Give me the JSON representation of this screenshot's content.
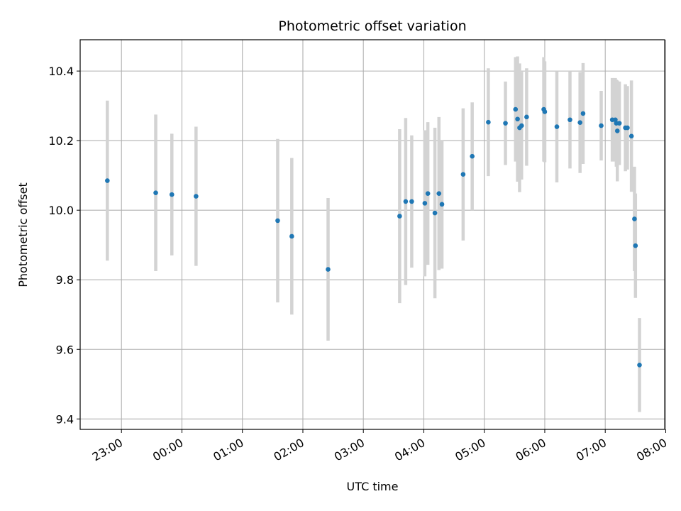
{
  "chart_data": {
    "type": "scatter",
    "title": "Photometric offset variation",
    "xlabel": "UTC time",
    "ylabel": "Photometric offset",
    "x_ticks": [
      "23:00",
      "00:00",
      "01:00",
      "02:00",
      "03:00",
      "04:00",
      "05:00",
      "06:00",
      "07:00",
      "08:00"
    ],
    "y_ticks": [
      "9.4",
      "9.6",
      "9.8",
      "10.0",
      "10.2",
      "10.4"
    ],
    "xlim_hours_from_2300": [
      -0.683,
      8.983
    ],
    "ylim": [
      9.37,
      10.49
    ],
    "grid": true,
    "colors": {
      "point": "#1f77b4",
      "errorbar": "#d3d3d3",
      "grid": "#b0b0b0"
    },
    "points": [
      {
        "time": "22:46",
        "y": 10.085,
        "err": 0.23
      },
      {
        "time": "23:34",
        "y": 10.05,
        "err": 0.225
      },
      {
        "time": "23:50",
        "y": 10.045,
        "err": 0.175
      },
      {
        "time": "00:14",
        "y": 10.04,
        "err": 0.2
      },
      {
        "time": "01:35",
        "y": 9.97,
        "err": 0.235
      },
      {
        "time": "01:49",
        "y": 9.925,
        "err": 0.225
      },
      {
        "time": "02:25",
        "y": 9.83,
        "err": 0.205
      },
      {
        "time": "03:36",
        "y": 9.983,
        "err": 0.25
      },
      {
        "time": "03:42",
        "y": 10.025,
        "err": 0.24
      },
      {
        "time": "03:48",
        "y": 10.025,
        "err": 0.19
      },
      {
        "time": "04:01",
        "y": 10.02,
        "err": 0.21
      },
      {
        "time": "04:04",
        "y": 10.048,
        "err": 0.205
      },
      {
        "time": "04:11",
        "y": 9.992,
        "err": 0.245
      },
      {
        "time": "04:15",
        "y": 10.048,
        "err": 0.22
      },
      {
        "time": "04:18",
        "y": 10.017,
        "err": 0.185
      },
      {
        "time": "04:39",
        "y": 10.103,
        "err": 0.19
      },
      {
        "time": "04:48",
        "y": 10.155,
        "err": 0.155
      },
      {
        "time": "05:04",
        "y": 10.253,
        "err": 0.155
      },
      {
        "time": "05:21",
        "y": 10.25,
        "err": 0.12
      },
      {
        "time": "05:31",
        "y": 10.29,
        "err": 0.15
      },
      {
        "time": "05:33",
        "y": 10.262,
        "err": 0.18
      },
      {
        "time": "05:35",
        "y": 10.237,
        "err": 0.185
      },
      {
        "time": "05:37",
        "y": 10.243,
        "err": 0.155
      },
      {
        "time": "05:42",
        "y": 10.268,
        "err": 0.14
      },
      {
        "time": "05:59",
        "y": 10.29,
        "err": 0.15
      },
      {
        "time": "06:00",
        "y": 10.283,
        "err": 0.145
      },
      {
        "time": "06:12",
        "y": 10.24,
        "err": 0.16
      },
      {
        "time": "06:25",
        "y": 10.26,
        "err": 0.14
      },
      {
        "time": "06:35",
        "y": 10.252,
        "err": 0.145
      },
      {
        "time": "06:38",
        "y": 10.278,
        "err": 0.145
      },
      {
        "time": "06:56",
        "y": 10.243,
        "err": 0.1
      },
      {
        "time": "07:07",
        "y": 10.26,
        "err": 0.12
      },
      {
        "time": "07:10",
        "y": 10.26,
        "err": 0.12
      },
      {
        "time": "07:11",
        "y": 10.25,
        "err": 0.125
      },
      {
        "time": "07:12",
        "y": 10.228,
        "err": 0.145
      },
      {
        "time": "07:14",
        "y": 10.25,
        "err": 0.12
      },
      {
        "time": "07:20",
        "y": 10.237,
        "err": 0.125
      },
      {
        "time": "07:22",
        "y": 10.237,
        "err": 0.12
      },
      {
        "time": "07:26",
        "y": 10.213,
        "err": 0.16
      },
      {
        "time": "07:29",
        "y": 9.975,
        "err": 0.15
      },
      {
        "time": "07:30",
        "y": 9.898,
        "err": 0.15
      },
      {
        "time": "07:34",
        "y": 9.555,
        "err": 0.135
      }
    ]
  }
}
